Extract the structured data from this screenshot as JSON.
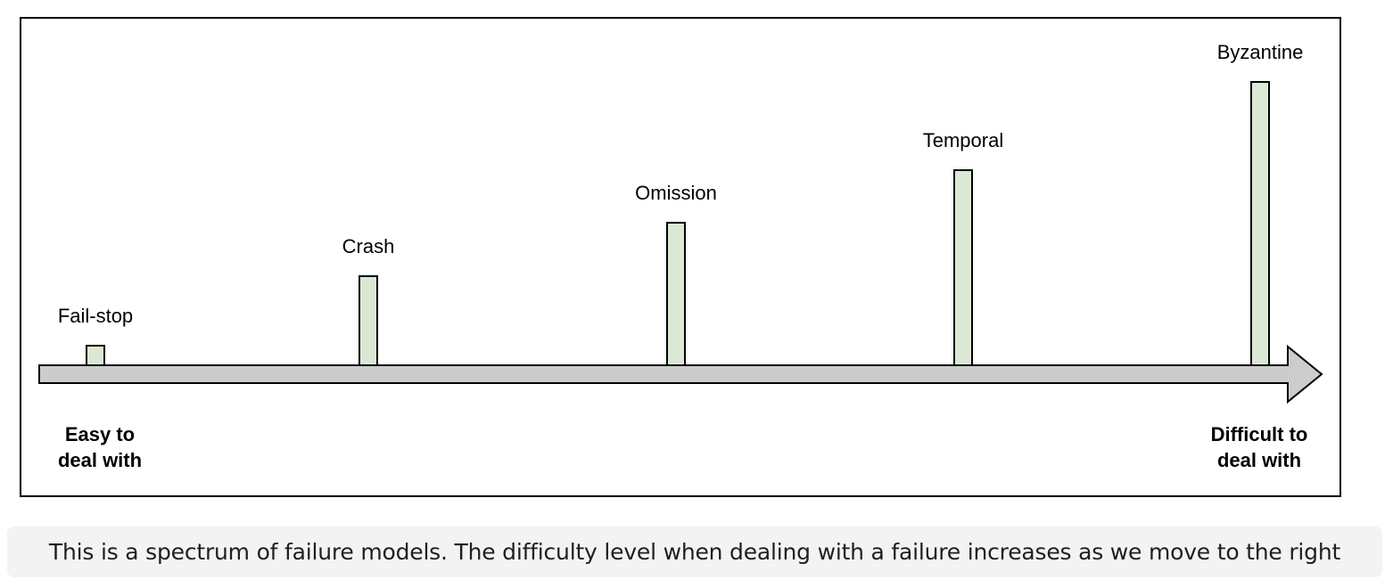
{
  "diagram": {
    "failure_models": [
      {
        "label": "Fail-stop",
        "level": 1
      },
      {
        "label": "Crash",
        "level": 2
      },
      {
        "label": "Omission",
        "level": 3
      },
      {
        "label": "Temporal",
        "level": 4
      },
      {
        "label": "Byzantine",
        "level": 5
      }
    ],
    "axis": {
      "left_label_line1": "Easy to",
      "left_label_line2": "deal with",
      "right_label_line1": "Difficult to",
      "right_label_line2": "deal with"
    },
    "colors": {
      "bar_fill": "#dae8d4",
      "arrow_fill": "#cccccc",
      "stroke": "#000000"
    }
  },
  "caption": "This is a spectrum of failure models. The difficulty level when dealing with a failure increases as we move to the right"
}
